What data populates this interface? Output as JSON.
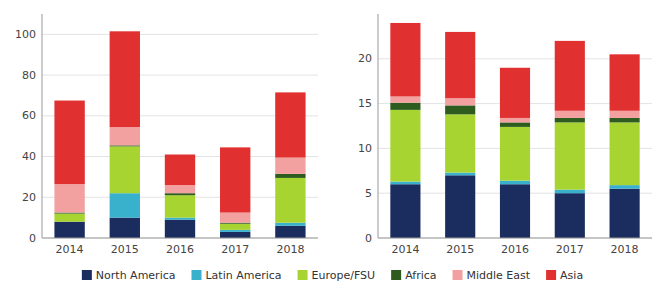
{
  "chart_data": [
    {
      "type": "bar",
      "stacked": true,
      "grid": true,
      "legend": "bottom",
      "categories": [
        "2014",
        "2015",
        "2016",
        "2017",
        "2018"
      ],
      "series": [
        {
          "name": "North America",
          "color": "#1b2d5e",
          "values": [
            8,
            10,
            9,
            3,
            6
          ]
        },
        {
          "name": "Latin America",
          "color": "#39b0cc",
          "values": [
            0,
            12,
            1,
            1,
            1.5
          ]
        },
        {
          "name": "Europe/FSU",
          "color": "#a8d432",
          "values": [
            4,
            23,
            11,
            3,
            22
          ]
        },
        {
          "name": "Africa",
          "color": "#2e5c1e",
          "values": [
            0.5,
            0.5,
            1,
            0.5,
            2
          ]
        },
        {
          "name": "Middle East",
          "color": "#f2a0a0",
          "values": [
            14,
            9,
            4,
            5,
            8
          ]
        },
        {
          "name": "Asia",
          "color": "#e03030",
          "values": [
            41,
            47,
            15,
            32,
            32
          ]
        }
      ],
      "ylim": [
        0,
        110
      ],
      "yticks": [
        0,
        20,
        40,
        60,
        80,
        100
      ]
    },
    {
      "type": "bar",
      "stacked": true,
      "grid": true,
      "categories": [
        "2014",
        "2015",
        "2016",
        "2017",
        "2018"
      ],
      "series": [
        {
          "color": "#1b2d5e",
          "values": [
            6,
            7,
            6,
            5,
            5.5
          ]
        },
        {
          "color": "#39b0cc",
          "values": [
            0.3,
            0.3,
            0.4,
            0.4,
            0.4
          ]
        },
        {
          "color": "#a8d432",
          "values": [
            8,
            6.5,
            6,
            7.5,
            7
          ]
        },
        {
          "color": "#2e5c1e",
          "values": [
            0.8,
            1.0,
            0.5,
            0.5,
            0.5
          ]
        },
        {
          "color": "#f2a0a0",
          "values": [
            0.7,
            0.8,
            0.5,
            0.8,
            0.8
          ]
        },
        {
          "color": "#e03030",
          "values": [
            8.2,
            7.4,
            5.6,
            7.8,
            6.3
          ]
        }
      ],
      "ylim": [
        0,
        25
      ],
      "yticks": [
        0,
        5,
        10,
        15,
        20
      ]
    }
  ]
}
